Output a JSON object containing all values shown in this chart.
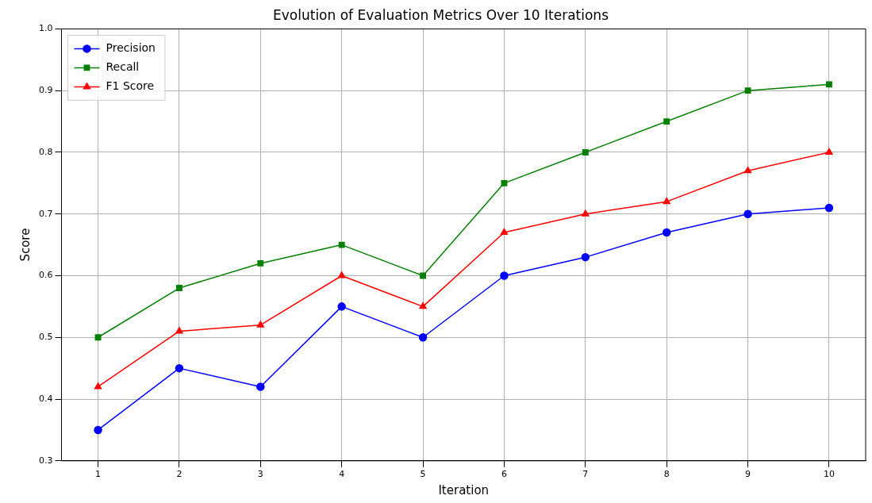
{
  "chart_data": {
    "type": "line",
    "title": "Evolution of Evaluation Metrics Over 10 Iterations",
    "xlabel": "Iteration",
    "ylabel": "Score",
    "x": [
      1,
      2,
      3,
      4,
      5,
      6,
      7,
      8,
      9,
      10
    ],
    "series": [
      {
        "name": "Precision",
        "color": "#0000ff",
        "marker": "circle",
        "values": [
          0.35,
          0.45,
          0.42,
          0.55,
          0.5,
          0.6,
          0.63,
          0.67,
          0.7,
          0.71
        ]
      },
      {
        "name": "Recall",
        "color": "#008000",
        "marker": "square",
        "values": [
          0.5,
          0.58,
          0.62,
          0.65,
          0.6,
          0.75,
          0.8,
          0.85,
          0.9,
          0.91
        ]
      },
      {
        "name": "F1 Score",
        "color": "#ff0000",
        "marker": "triangle",
        "values": [
          0.42,
          0.51,
          0.52,
          0.6,
          0.55,
          0.67,
          0.7,
          0.72,
          0.77,
          0.8
        ]
      }
    ],
    "xlim": [
      0.55,
      10.45
    ],
    "xticks": [
      1,
      2,
      3,
      4,
      5,
      6,
      7,
      8,
      9,
      10
    ],
    "ylim": [
      0.3,
      1.0
    ],
    "yticks": [
      0.3,
      0.4,
      0.5,
      0.6,
      0.7,
      0.8,
      0.9,
      {
        "value": 1.0,
        "label": "1.0"
      }
    ],
    "grid": true,
    "legend": "top left",
    "line_style": "solid"
  }
}
